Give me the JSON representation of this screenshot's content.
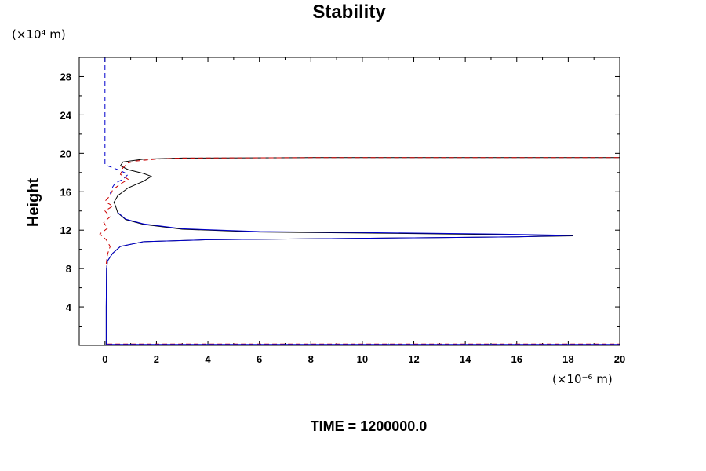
{
  "chart_data": {
    "type": "line",
    "title": "Stability",
    "ylabel": "Height",
    "xlabel": "",
    "y_unit_label": "(×10⁴ m)",
    "x_unit_label": "(×10⁻⁶ m)",
    "footer": "TIME = 1200000.0",
    "xlim": [
      -1,
      20
    ],
    "ylim": [
      0,
      30
    ],
    "x_ticks": [
      0,
      2,
      4,
      6,
      8,
      10,
      12,
      14,
      16,
      18,
      20
    ],
    "y_ticks": [
      4,
      8,
      12,
      16,
      20,
      24,
      28
    ],
    "x_tick_labels": [
      "0",
      "2",
      "4",
      "6",
      "8",
      "10",
      "12",
      "14",
      "16",
      "18",
      "20"
    ],
    "y_tick_labels": [
      "4",
      "8",
      "12",
      "16",
      "20",
      "24",
      "28"
    ],
    "grid": false,
    "series": [
      {
        "color": "#000000",
        "dash": "solid",
        "points": [
          [
            0.05,
            0
          ],
          [
            0.05,
            4
          ],
          [
            0.06,
            8
          ],
          [
            0.1,
            8.8
          ],
          [
            0.3,
            9.6
          ],
          [
            0.6,
            10.3
          ],
          [
            1.5,
            10.8
          ],
          [
            4,
            11.0
          ],
          [
            8,
            11.1
          ],
          [
            12,
            11.2
          ],
          [
            16,
            11.3
          ],
          [
            18.2,
            11.4
          ],
          [
            15,
            11.55
          ],
          [
            10,
            11.7
          ],
          [
            6,
            11.8
          ],
          [
            3,
            12.1
          ],
          [
            1.5,
            12.6
          ],
          [
            0.8,
            13.1
          ],
          [
            0.5,
            13.8
          ],
          [
            0.4,
            14.6
          ],
          [
            0.35,
            14.9
          ],
          [
            0.5,
            15.6
          ],
          [
            0.9,
            16.4
          ],
          [
            1.5,
            17.1
          ],
          [
            1.8,
            17.6
          ],
          [
            1.5,
            17.9
          ],
          [
            0.9,
            18.3
          ],
          [
            0.6,
            18.7
          ],
          [
            0.7,
            19.1
          ],
          [
            1.5,
            19.4
          ],
          [
            3,
            19.5
          ],
          [
            8,
            19.55
          ],
          [
            12,
            19.55
          ],
          [
            16,
            19.55
          ],
          [
            20,
            19.55
          ]
        ]
      },
      {
        "color": "#0000cc",
        "dash": "solid",
        "points": [
          [
            0.05,
            0
          ],
          [
            0.05,
            4
          ],
          [
            0.06,
            8
          ],
          [
            0.1,
            8.8
          ],
          [
            0.3,
            9.6
          ],
          [
            0.6,
            10.3
          ],
          [
            1.5,
            10.8
          ],
          [
            4,
            11.0
          ],
          [
            8,
            11.1
          ],
          [
            12,
            11.2
          ],
          [
            16,
            11.3
          ],
          [
            18.2,
            11.45
          ],
          [
            15,
            11.6
          ],
          [
            10,
            11.75
          ],
          [
            6,
            11.85
          ],
          [
            3,
            12.15
          ],
          [
            1.5,
            12.65
          ],
          [
            0.8,
            13.15
          ],
          [
            0.5,
            13.85
          ]
        ]
      },
      {
        "color": "#0000cc",
        "dash": "dashed",
        "points": [
          [
            0,
            30
          ],
          [
            0,
            18.8
          ],
          [
            0.3,
            18.5
          ],
          [
            0.6,
            18.2
          ],
          [
            0.9,
            17.8
          ],
          [
            0.7,
            17.3
          ],
          [
            0.4,
            16.9
          ],
          [
            0.3,
            16.5
          ],
          [
            0.2,
            15.8
          ]
        ]
      },
      {
        "color": "#cc0000",
        "dash": "dashed",
        "points": [
          [
            0.05,
            8.5
          ],
          [
            0.1,
            9.5
          ],
          [
            0.2,
            10.3
          ],
          [
            0.05,
            11.0
          ],
          [
            -0.2,
            11.6
          ],
          [
            0.1,
            12.2
          ],
          [
            -0.05,
            12.8
          ],
          [
            0.2,
            13.4
          ],
          [
            0.0,
            14.0
          ],
          [
            0.3,
            14.5
          ],
          [
            0.0,
            15.0
          ],
          [
            0.2,
            15.6
          ],
          [
            0.3,
            16.2
          ],
          [
            0.6,
            16.8
          ],
          [
            0.9,
            17.3
          ],
          [
            0.6,
            17.8
          ],
          [
            0.7,
            18.5
          ],
          [
            0.9,
            19.0
          ],
          [
            1.2,
            19.2
          ],
          [
            2,
            19.4
          ],
          [
            3,
            19.5
          ],
          [
            8,
            19.55
          ],
          [
            12,
            19.55
          ],
          [
            20,
            19.55
          ]
        ]
      },
      {
        "color": "#cc0000",
        "dash": "dashed",
        "points": [
          [
            0.1,
            0.15
          ],
          [
            20,
            0.15
          ]
        ]
      },
      {
        "color": "#0000cc",
        "dash": "solid",
        "points": [
          [
            0.1,
            0.1
          ],
          [
            20,
            0.1
          ]
        ]
      }
    ]
  }
}
